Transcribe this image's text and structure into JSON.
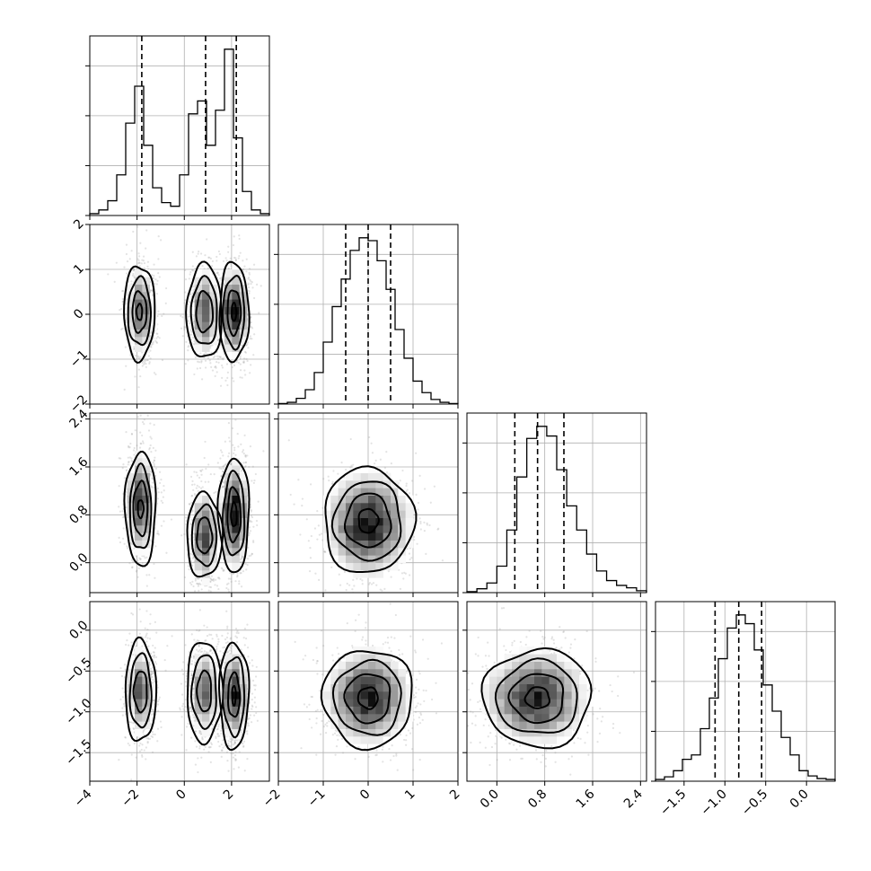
{
  "chart_data": {
    "type": "corner",
    "grid": true,
    "params": [
      {
        "range": [
          -4.0,
          3.6
        ],
        "ticks": [
          -4,
          -2,
          0,
          2
        ],
        "tick_labels": [
          "−4",
          "−2",
          "0",
          "2"
        ],
        "quantiles": [
          -1.8,
          0.9,
          2.2
        ],
        "hist_edges": [
          -4.0,
          3.6
        ],
        "hist_counts": [
          1,
          3,
          8,
          22,
          50,
          70,
          38,
          15,
          7,
          5,
          22,
          55,
          62,
          38,
          57,
          90,
          42,
          13,
          3,
          1
        ]
      },
      {
        "range": [
          -2.0,
          2.0
        ],
        "ticks": [
          -2,
          -1,
          0,
          1,
          2
        ],
        "tick_labels": [
          "−2",
          "−1",
          "0",
          "1",
          "2"
        ],
        "quantiles": [
          -0.5,
          0.0,
          0.5
        ],
        "hist_edges": [
          -2.0,
          2.0
        ],
        "hist_counts": [
          1,
          3,
          10,
          25,
          55,
          108,
          170,
          218,
          268,
          290,
          285,
          250,
          200,
          130,
          80,
          40,
          20,
          8,
          3,
          1
        ]
      },
      {
        "range": [
          -0.5,
          2.5
        ],
        "ticks": [
          0.0,
          0.8,
          1.6,
          2.4
        ],
        "tick_labels": [
          "0.0",
          "0.8",
          "1.6",
          "2.4"
        ],
        "quantiles": [
          0.3,
          0.68,
          1.12
        ],
        "hist_edges": [
          -0.5,
          2.5
        ],
        "hist_counts": [
          2,
          8,
          20,
          55,
          130,
          240,
          320,
          345,
          325,
          255,
          180,
          130,
          80,
          45,
          25,
          15,
          10,
          4
        ]
      },
      {
        "range": [
          -1.85,
          0.35
        ],
        "ticks": [
          -1.5,
          -1.0,
          -0.5,
          0.0
        ],
        "tick_labels": [
          "−1.5",
          "−1.0",
          "−0.5",
          "0.0"
        ],
        "quantiles": [
          -1.12,
          -0.83,
          -0.55
        ],
        "hist_edges": [
          -1.85,
          0.35
        ],
        "hist_counts": [
          2,
          5,
          12,
          25,
          30,
          60,
          95,
          140,
          175,
          190,
          180,
          150,
          110,
          80,
          50,
          30,
          12,
          6,
          3,
          2
        ]
      }
    ],
    "joint": {
      "0_1": {
        "blobs": [
          {
            "x": -1.85,
            "y": 0.05,
            "sx": 0.3,
            "sy": 0.5,
            "w": 1.0
          },
          {
            "x": 0.85,
            "y": 0.05,
            "sx": 0.3,
            "sy": 0.5,
            "w": 1.0
          },
          {
            "x": 2.1,
            "y": 0.05,
            "sx": 0.3,
            "sy": 0.5,
            "w": 1.3
          }
        ],
        "contours": [
          {
            "cx": -1.9,
            "cy": 0.05,
            "rx": [
              0.65,
              0.48,
              0.3,
              0.12
            ],
            "ry": [
              1.05,
              0.75,
              0.45,
              0.18
            ]
          },
          {
            "cx": 0.85,
            "cy": 0.05,
            "rx": [
              0.75,
              0.55,
              0.35
            ],
            "ry": [
              1.05,
              0.75,
              0.45
            ]
          },
          {
            "cx": 2.1,
            "cy": 0.05,
            "rx": [
              0.62,
              0.45,
              0.28,
              0.1
            ],
            "ry": [
              1.1,
              0.8,
              0.5,
              0.2
            ]
          }
        ]
      },
      "0_2": {
        "blobs": [
          {
            "x": -1.85,
            "y": 1.0,
            "sx": 0.3,
            "sy": 0.45,
            "w": 1.0
          },
          {
            "x": 0.85,
            "y": 0.45,
            "sx": 0.3,
            "sy": 0.4,
            "w": 1.0
          },
          {
            "x": 2.1,
            "y": 0.8,
            "sx": 0.3,
            "sy": 0.45,
            "w": 1.3
          }
        ],
        "contours": [
          {
            "cx": -1.85,
            "cy": 0.9,
            "rx": [
              0.65,
              0.45,
              0.3,
              0.12
            ],
            "ry": [
              0.95,
              0.7,
              0.45,
              0.15
            ]
          },
          {
            "cx": 0.85,
            "cy": 0.45,
            "rx": [
              0.75,
              0.52,
              0.32
            ],
            "ry": [
              0.7,
              0.5,
              0.3
            ]
          },
          {
            "cx": 2.1,
            "cy": 0.8,
            "rx": [
              0.65,
              0.45,
              0.28,
              0.12
            ],
            "ry": [
              0.95,
              0.7,
              0.45,
              0.2
            ]
          }
        ]
      },
      "0_3": {
        "blobs": [
          {
            "x": -1.85,
            "y": -0.75,
            "sx": 0.3,
            "sy": 0.28,
            "w": 1.0
          },
          {
            "x": 0.85,
            "y": -0.75,
            "sx": 0.3,
            "sy": 0.28,
            "w": 1.0
          },
          {
            "x": 2.1,
            "y": -0.8,
            "sx": 0.3,
            "sy": 0.28,
            "w": 1.3
          }
        ],
        "contours": [
          {
            "cx": -1.85,
            "cy": -0.75,
            "rx": [
              0.65,
              0.45,
              0.28
            ],
            "ry": [
              0.62,
              0.45,
              0.25
            ]
          },
          {
            "cx": 0.85,
            "cy": -0.75,
            "rx": [
              0.75,
              0.52,
              0.3
            ],
            "ry": [
              0.62,
              0.45,
              0.25
            ]
          },
          {
            "cx": 2.1,
            "cy": -0.8,
            "rx": [
              0.62,
              0.45,
              0.25,
              0.08
            ],
            "ry": [
              0.65,
              0.48,
              0.27,
              0.12
            ]
          }
        ]
      },
      "1_2": {
        "blobs": [
          {
            "x": 0.0,
            "y": 0.65,
            "sx": 0.5,
            "sy": 0.45,
            "w": 1.0
          }
        ],
        "contours": [
          {
            "cx": 0.0,
            "cy": 0.7,
            "rx": [
              1.0,
              0.75,
              0.5,
              0.22
            ],
            "ry": [
              0.88,
              0.66,
              0.45,
              0.2
            ]
          }
        ]
      },
      "1_3": {
        "blobs": [
          {
            "x": 0.0,
            "y": -0.82,
            "sx": 0.5,
            "sy": 0.3,
            "w": 1.0
          }
        ],
        "contours": [
          {
            "cx": 0.0,
            "cy": -0.83,
            "rx": [
              1.0,
              0.75,
              0.5,
              0.22
            ],
            "ry": [
              0.6,
              0.45,
              0.3,
              0.13
            ]
          }
        ]
      },
      "2_3": {
        "blobs": [
          {
            "x": 0.65,
            "y": -0.82,
            "sx": 0.45,
            "sy": 0.3,
            "w": 1.0
          }
        ],
        "contours": [
          {
            "cx": 0.68,
            "cy": -0.83,
            "rx": [
              0.9,
              0.68,
              0.45,
              0.2
            ],
            "ry": [
              0.6,
              0.45,
              0.3,
              0.13
            ]
          }
        ]
      }
    }
  }
}
